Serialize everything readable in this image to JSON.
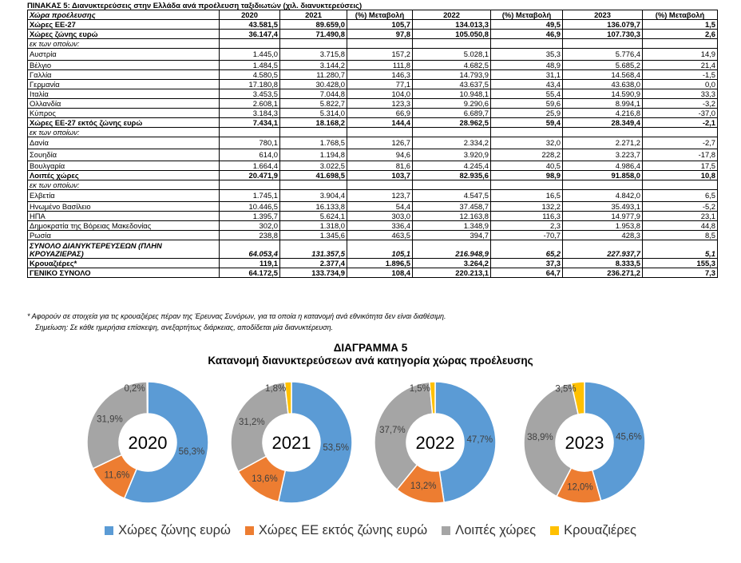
{
  "table": {
    "caption": "ΠΙΝΑΚΑΣ 5: Διανυκτερεύσεις στην Ελλάδα ανά προέλευση ταξιδιωτών (χιλ. διανυκτερεύσεις)",
    "headers": [
      "Χώρα προέλευσης",
      "2020",
      "2021",
      "(%) Μεταβολή",
      "2022",
      "(%) Μεταβολή",
      "2023",
      "(%) Μεταβολή"
    ],
    "rows": [
      {
        "style": "bold",
        "cells": [
          "Χώρες ΕΕ-27",
          "43.581,5",
          "89.659,0",
          "105,7",
          "134.013,3",
          "49,5",
          "136.079,7",
          "1,5"
        ]
      },
      {
        "style": "bold",
        "cells": [
          "Χώρες ζώνης ευρώ",
          "36.147,4",
          "71.490,8",
          "97,8",
          "105.050,8",
          "46,9",
          "107.730,3",
          "2,6"
        ]
      },
      {
        "style": "sub",
        "cells": [
          "εκ των οποίων:",
          "",
          "",
          "",
          "",
          "",
          "",
          ""
        ]
      },
      {
        "style": "tall",
        "cells": [
          "Αυστρία",
          "1.445,0",
          "3.715,8",
          "157,2",
          "5.028,1",
          "35,3",
          "5.776,4",
          "14,9"
        ]
      },
      {
        "style": "",
        "cells": [
          "Βέλγιο",
          "1.484,5",
          "3.144,2",
          "111,8",
          "4.682,5",
          "48,9",
          "5.685,2",
          "21,4"
        ]
      },
      {
        "style": "",
        "cells": [
          "Γαλλία",
          "4.580,5",
          "11.280,7",
          "146,3",
          "14.793,9",
          "31,1",
          "14.568,4",
          "-1,5"
        ]
      },
      {
        "style": "",
        "cells": [
          "Γερμανία",
          "17.180,8",
          "30.428,0",
          "77,1",
          "43.637,5",
          "43,4",
          "43.638,0",
          "0,0"
        ]
      },
      {
        "style": "",
        "cells": [
          "Ιταλία",
          "3.453,5",
          "7.044,8",
          "104,0",
          "10.948,1",
          "55,4",
          "14.590,9",
          "33,3"
        ]
      },
      {
        "style": "",
        "cells": [
          "Ολλανδία",
          "2.608,1",
          "5.822,7",
          "123,3",
          "9.290,6",
          "59,6",
          "8.994,1",
          "-3,2"
        ]
      },
      {
        "style": "",
        "cells": [
          "Κύπρος",
          "3.184,3",
          "5.314,0",
          "66,9",
          "6.689,7",
          "25,9",
          "4.216,8",
          "-37,0"
        ]
      },
      {
        "style": "bold",
        "cells": [
          "Χώρες ΕΕ-27 εκτός ζώνης ευρώ",
          "7.434,1",
          "18.168,2",
          "144,4",
          "28.962,5",
          "59,4",
          "28.349,4",
          "-2,1"
        ]
      },
      {
        "style": "sub",
        "cells": [
          "εκ των οποίων:",
          "",
          "",
          "",
          "",
          "",
          "",
          ""
        ]
      },
      {
        "style": "tall",
        "cells": [
          "Δανία",
          "780,1",
          "1.768,5",
          "126,7",
          "2.334,2",
          "32,0",
          "2.271,2",
          "-2,7"
        ]
      },
      {
        "style": "tall",
        "cells": [
          "Σουηδία",
          "614,0",
          "1.194,8",
          "94,6",
          "3.920,9",
          "228,2",
          "3.223,7",
          "-17,8"
        ]
      },
      {
        "style": "",
        "cells": [
          "Βουλγαρία",
          "1.664,4",
          "3.022,5",
          "81,6",
          "4.245,4",
          "40,5",
          "4.986,4",
          "17,5"
        ]
      },
      {
        "style": "bold",
        "cells": [
          "Λοιπές χώρες",
          "20.471,9",
          "41.698,5",
          "103,7",
          "82.935,6",
          "98,9",
          "91.858,0",
          "10,8"
        ]
      },
      {
        "style": "sub",
        "cells": [
          "εκ των οποίων:",
          "",
          "",
          "",
          "",
          "",
          "",
          ""
        ]
      },
      {
        "style": "tall",
        "cells": [
          "Ελβετία",
          "1.745,1",
          "3.904,4",
          "123,7",
          "4.547,5",
          "16,5",
          "4.842,0",
          "6,5"
        ]
      },
      {
        "style": "",
        "cells": [
          "Ηνωμένο Βασίλειο",
          "10.446,5",
          "16.133,8",
          "54,4",
          "37.458,7",
          "132,2",
          "35.493,1",
          "-5,2"
        ]
      },
      {
        "style": "",
        "cells": [
          "ΗΠΑ",
          "1.395,7",
          "5.624,1",
          "303,0",
          "12.163,8",
          "116,3",
          "14.977,9",
          "23,1"
        ]
      },
      {
        "style": "",
        "cells": [
          "Δημοκρατία της Βόρειας Μακεδονίας",
          "302,0",
          "1.318,0",
          "336,4",
          "1.348,9",
          "2,3",
          "1.953,8",
          "44,8"
        ]
      },
      {
        "style": "",
        "cells": [
          "Ρωσία",
          "238,8",
          "1.345,6",
          "463,5",
          "394,7",
          "-70,7",
          "428,3",
          "8,5"
        ]
      },
      {
        "style": "bold-italic dbl",
        "cells": [
          "ΣΥΝΟΛΟ ΔΙΑΝΥΚΤΕΡΕΥΣΕΩΝ (ΠΛΗΝ ΚΡΟΥΑΖΙΕΡΑΣ)",
          "64.053,4",
          "131.357,5",
          "105,1",
          "216.948,9",
          "65,2",
          "227.937,7",
          "5,1"
        ]
      },
      {
        "style": "bold",
        "cells": [
          "Κρουαζιέρες*",
          "119,1",
          "2.377,4",
          "1.896,5",
          "3.264,2",
          "37,3",
          "8.333,5",
          "155,3"
        ]
      },
      {
        "style": "bold",
        "cells": [
          "ΓΕΝΙΚΟ ΣΥΝΟΛΟ",
          "64.172,5",
          "133.734,9",
          "108,4",
          "220.213,1",
          "64,7",
          "236.271,2",
          "7,3"
        ]
      }
    ]
  },
  "notes": {
    "footnote": "* Αφορούν σε στοιχεία για τις κρουαζιέρες πέραν της Έρευνας Συνόρων, για τα οποία η κατανομή ανά εθνικότητα δεν είναι διαθέσιμη.",
    "remark": "Σημείωση: Σε κάθε ημερήσια επίσκεψη, ανεξαρτήτως διάρκειας, αποδίδεται μία διανυκτέρευση."
  },
  "diagram": {
    "title": "ΔΙΑΓΡΑΜΜΑ 5",
    "subtitle": "Κατανομή διανυκτερεύσεων ανά κατηγορία χώρας προέλευσης"
  },
  "chart_data": {
    "type": "pie",
    "subtype": "donut",
    "series_names": [
      "Χώρες ζώνης ευρώ",
      "Χώρες ΕΕ εκτός ζώνης ευρώ",
      "Λοιπές χώρες",
      "Κρουαζιέρες"
    ],
    "colors": [
      "#5b9bd5",
      "#ed7d31",
      "#a5a5a5",
      "#ffc000"
    ],
    "legend_position": "bottom",
    "charts": [
      {
        "label": "2020",
        "values": [
          56.3,
          11.6,
          31.9,
          0.2
        ],
        "labels": [
          "56,3%",
          "11,6%",
          "31,9%",
          "0,2%"
        ]
      },
      {
        "label": "2021",
        "values": [
          53.5,
          13.6,
          31.2,
          1.8
        ],
        "labels": [
          "53,5%",
          "13,6%",
          "31,2%",
          "1,8%"
        ]
      },
      {
        "label": "2022",
        "values": [
          47.7,
          13.2,
          37.7,
          1.5
        ],
        "labels": [
          "47,7%",
          "13,2%",
          "37,7%",
          "1,5%"
        ]
      },
      {
        "label": "2023",
        "values": [
          45.6,
          12.0,
          38.9,
          3.5
        ],
        "labels": [
          "45,6%",
          "12,0%",
          "38,9%",
          "3,5%"
        ]
      }
    ]
  }
}
